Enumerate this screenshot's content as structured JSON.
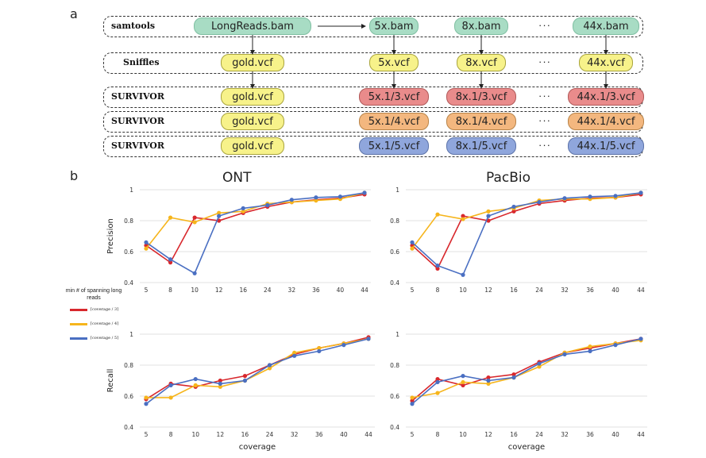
{
  "panel_a": {
    "letter": "a",
    "rows": [
      {
        "tool": "samtools",
        "first": "LongReads.bam",
        "items": [
          "5x.bam",
          "8x.bam",
          "44x.bam"
        ],
        "color": "green"
      },
      {
        "tool": "Sniffles",
        "first": "gold.vcf",
        "items": [
          "5x.vcf",
          "8x.vcf",
          "44x.vcf"
        ],
        "color": "yellow"
      },
      {
        "tool": "SURVIVOR",
        "first": "gold.vcf",
        "items": [
          "5x.1/3.vcf",
          "8x.1/3.vcf",
          "44x.1/3.vcf"
        ],
        "color": "red"
      },
      {
        "tool": "SURVIVOR",
        "first": "gold.vcf",
        "items": [
          "5x.1/4.vcf",
          "8x.1/4.vcf",
          "44x.1/4.vcf"
        ],
        "color": "orange"
      },
      {
        "tool": "SURVIVOR",
        "first": "gold.vcf",
        "items": [
          "5x.1/5.vcf",
          "8x.1/5.vcf",
          "44x.1/5.vcf"
        ],
        "color": "blue"
      }
    ],
    "ellipsis": "···"
  },
  "panel_b": {
    "letter": "b",
    "column_titles": [
      "ONT",
      "PacBio"
    ],
    "legend": {
      "title": "min # of spanning long reads",
      "labels": [
        "⌈coverage / 3⌉",
        "⌈coverage / 4⌉",
        "⌈coverage / 5⌉"
      ]
    }
  },
  "colors": {
    "red": "#d8282d",
    "yellow": "#f6b51c",
    "blue": "#4a6fc2"
  },
  "chart_data": [
    {
      "type": "line",
      "panel": "ONT precision",
      "categories": [
        "5",
        "8",
        "10",
        "12",
        "16",
        "24",
        "32",
        "36",
        "40",
        "44"
      ],
      "ylabel": "Precision",
      "xlabel": "",
      "ylim": [
        0.4,
        1
      ],
      "yticks": [
        "0.4",
        "0.6",
        "0.8",
        "1"
      ],
      "series": [
        {
          "color": "red",
          "values": [
            0.64,
            0.53,
            0.82,
            0.8,
            0.85,
            0.89,
            0.92,
            0.935,
            0.945,
            0.97
          ]
        },
        {
          "color": "yellow",
          "values": [
            0.62,
            0.82,
            0.79,
            0.85,
            0.86,
            0.91,
            0.92,
            0.93,
            0.94,
            0.98
          ]
        },
        {
          "color": "blue",
          "values": [
            0.66,
            0.55,
            0.46,
            0.83,
            0.88,
            0.9,
            0.935,
            0.95,
            0.955,
            0.98
          ]
        }
      ]
    },
    {
      "type": "line",
      "panel": "PacBio precision",
      "categories": [
        "5",
        "8",
        "10",
        "12",
        "16",
        "24",
        "32",
        "36",
        "40",
        "44"
      ],
      "ylabel": "",
      "xlabel": "",
      "ylim": [
        0.4,
        1
      ],
      "yticks": [
        "0.4",
        "0.6",
        "0.8",
        "1"
      ],
      "series": [
        {
          "color": "red",
          "values": [
            0.64,
            0.49,
            0.83,
            0.8,
            0.86,
            0.91,
            0.93,
            0.945,
            0.95,
            0.97
          ]
        },
        {
          "color": "yellow",
          "values": [
            0.62,
            0.84,
            0.81,
            0.86,
            0.88,
            0.93,
            0.94,
            0.94,
            0.95,
            0.98
          ]
        },
        {
          "color": "blue",
          "values": [
            0.66,
            0.51,
            0.45,
            0.83,
            0.89,
            0.92,
            0.945,
            0.955,
            0.96,
            0.98
          ]
        }
      ]
    },
    {
      "type": "line",
      "panel": "ONT recall",
      "categories": [
        "5",
        "8",
        "10",
        "12",
        "16",
        "24",
        "32",
        "36",
        "40",
        "44"
      ],
      "ylabel": "Recall",
      "xlabel": "coverage",
      "ylim": [
        0.4,
        1
      ],
      "yticks": [
        "0.4",
        "0.6",
        "0.8",
        "1"
      ],
      "series": [
        {
          "color": "red",
          "values": [
            0.58,
            0.68,
            0.66,
            0.7,
            0.73,
            0.8,
            0.87,
            0.91,
            0.94,
            0.98
          ]
        },
        {
          "color": "yellow",
          "values": [
            0.59,
            0.59,
            0.67,
            0.66,
            0.7,
            0.78,
            0.88,
            0.91,
            0.94,
            0.97
          ]
        },
        {
          "color": "blue",
          "values": [
            0.55,
            0.67,
            0.71,
            0.68,
            0.7,
            0.8,
            0.86,
            0.89,
            0.93,
            0.97
          ]
        }
      ]
    },
    {
      "type": "line",
      "panel": "PacBio recall",
      "categories": [
        "5",
        "8",
        "10",
        "12",
        "16",
        "24",
        "32",
        "36",
        "40",
        "44"
      ],
      "ylabel": "",
      "xlabel": "coverage",
      "ylim": [
        0.4,
        1
      ],
      "yticks": [
        "0.4",
        "0.6",
        "0.8",
        "1"
      ],
      "series": [
        {
          "color": "red",
          "values": [
            0.57,
            0.71,
            0.67,
            0.72,
            0.74,
            0.82,
            0.88,
            0.91,
            0.94,
            0.97
          ]
        },
        {
          "color": "yellow",
          "values": [
            0.59,
            0.62,
            0.69,
            0.68,
            0.72,
            0.79,
            0.88,
            0.92,
            0.94,
            0.96
          ]
        },
        {
          "color": "blue",
          "values": [
            0.55,
            0.69,
            0.73,
            0.7,
            0.72,
            0.81,
            0.87,
            0.89,
            0.93,
            0.97
          ]
        }
      ]
    }
  ]
}
